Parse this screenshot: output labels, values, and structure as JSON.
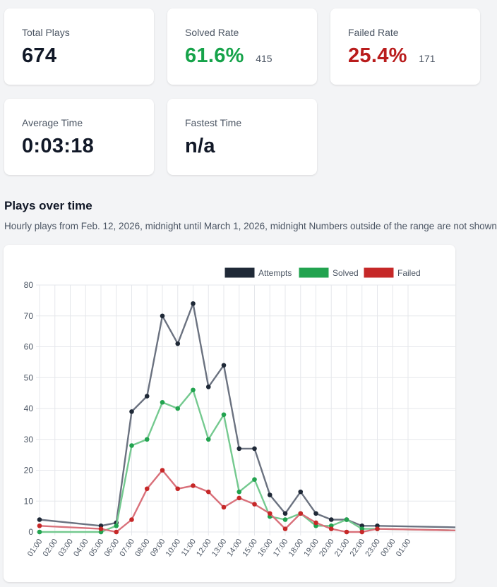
{
  "stats": [
    {
      "label": "Total Plays",
      "value": "674",
      "sub": "",
      "value_color": "#111827"
    },
    {
      "label": "Solved Rate",
      "value": "61.6%",
      "sub": "415",
      "value_color": "#16a34a"
    },
    {
      "label": "Failed Rate",
      "value": "25.4%",
      "sub": "171",
      "value_color": "#b91c1c"
    },
    {
      "label": "Average Time",
      "value": "0:03:18",
      "sub": "",
      "value_color": "#111827"
    },
    {
      "label": "Fastest Time",
      "value": "n/a",
      "sub": "",
      "value_color": "#111827"
    }
  ],
  "section": {
    "title": "Plays over time",
    "description": "Hourly plays from Feb. 12, 2026, midnight until March 1, 2026, midnight Numbers outside of the range are not shown"
  },
  "chart_data": {
    "type": "line",
    "categories": [
      "01:00",
      "02:00",
      "03:00",
      "04:00",
      "05:00",
      "06:00",
      "07:00",
      "08:00",
      "09:00",
      "10:00",
      "11:00",
      "12:00",
      "13:00",
      "14:00",
      "15:00",
      "16:00",
      "17:00",
      "18:00",
      "19:00",
      "20:00",
      "21:00",
      "22:00",
      "23:00",
      "00:00",
      "01:00"
    ],
    "yticks": [
      "0",
      "10",
      "20",
      "30",
      "40",
      "50",
      "60",
      "70",
      "80"
    ],
    "ylim": [
      0,
      80
    ],
    "grid": true,
    "legend_position": "top-right",
    "series": [
      {
        "name": "Attempts",
        "color": "#1f2937",
        "line_color": "#6b7280",
        "values": [
          4,
          null,
          null,
          null,
          2,
          3,
          39,
          44,
          70,
          61,
          74,
          47,
          54,
          27,
          27,
          12,
          6,
          13,
          6,
          4,
          4,
          2,
          2,
          null,
          null
        ]
      },
      {
        "name": "Solved",
        "color": "#22a34f",
        "line_color": "#74c98f",
        "values": [
          0,
          null,
          null,
          null,
          0,
          2,
          28,
          30,
          42,
          40,
          46,
          30,
          38,
          13,
          17,
          5,
          4,
          6,
          2,
          2,
          4,
          1,
          1,
          null,
          null
        ]
      },
      {
        "name": "Failed",
        "color": "#c62828",
        "line_color": "#d9707a",
        "values": [
          2,
          null,
          null,
          null,
          1,
          0,
          4,
          14,
          20,
          14,
          15,
          13,
          8,
          11,
          9,
          6,
          1,
          6,
          3,
          1,
          0,
          0,
          1,
          null,
          null
        ]
      }
    ]
  }
}
